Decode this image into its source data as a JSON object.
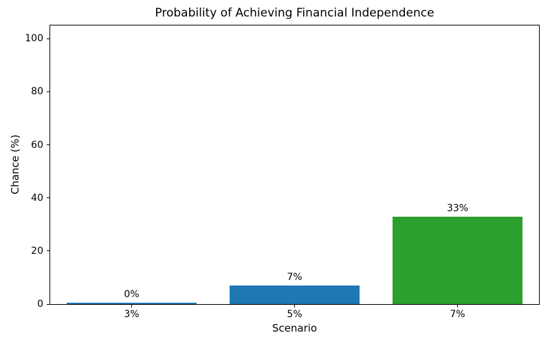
{
  "chart_data": {
    "type": "bar",
    "title": "Probability of Achieving Financial Independence",
    "xlabel": "Scenario",
    "ylabel": "Chance (%)",
    "categories": [
      "3%",
      "5%",
      "7%"
    ],
    "values": [
      0,
      7,
      33
    ],
    "bar_labels": [
      "0%",
      "7%",
      "33%"
    ],
    "bar_colors": [
      "#1f77b4",
      "#1f77b4",
      "#2ca02c"
    ],
    "ylim": [
      0,
      105
    ],
    "yticks": [
      0,
      20,
      40,
      60,
      80,
      100
    ],
    "bar_width_fraction": 0.8,
    "grid": false,
    "legend": null,
    "frame": "full-box",
    "background_color": "#ffffff",
    "spine_color": "#000000"
  }
}
